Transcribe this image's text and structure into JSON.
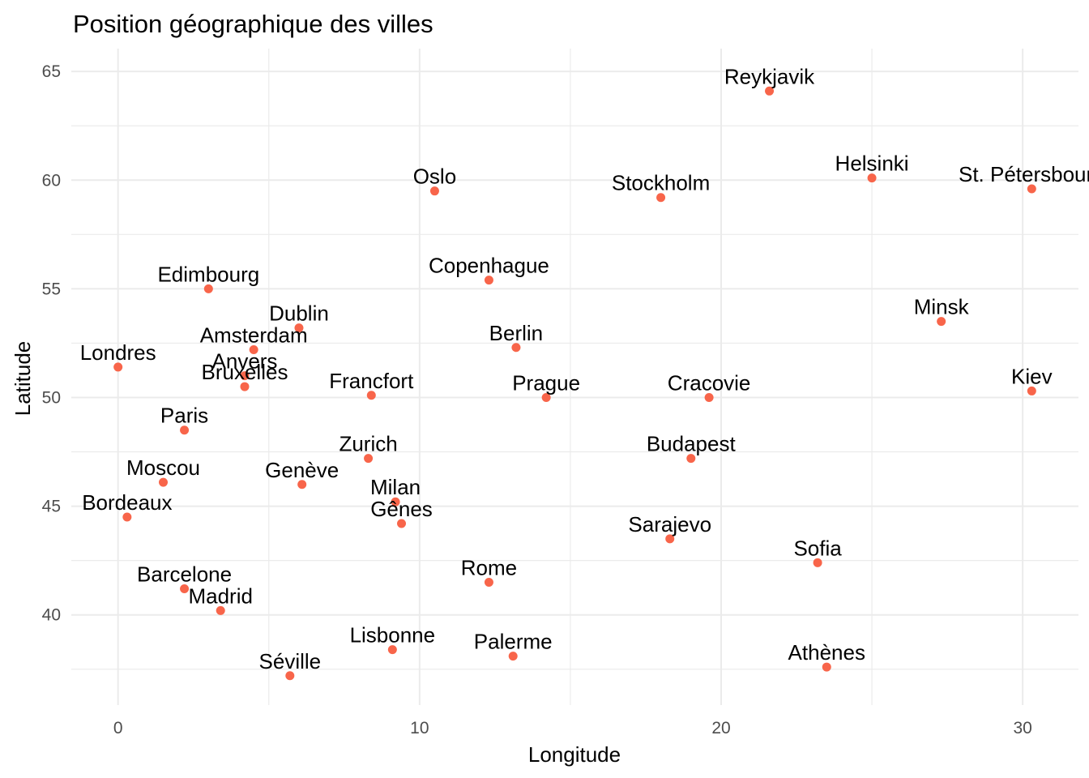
{
  "chart_data": {
    "type": "scatter",
    "title": "Position géographique des villes",
    "xlabel": "Longitude",
    "ylabel": "Latitude",
    "xlim": [
      -1.55,
      31.85
    ],
    "ylim": [
      35.85,
      66.05
    ],
    "x_ticks": [
      0,
      10,
      20,
      30
    ],
    "y_ticks": [
      40,
      45,
      50,
      55,
      60,
      65
    ],
    "grid": true,
    "point_color": "#f8654a",
    "points": [
      {
        "name": "Reykjavik",
        "x": 21.6,
        "y": 64.1
      },
      {
        "name": "Helsinki",
        "x": 25.0,
        "y": 60.1
      },
      {
        "name": "St. Pétersbourg",
        "x": 30.3,
        "y": 59.6
      },
      {
        "name": "Oslo",
        "x": 10.5,
        "y": 59.5
      },
      {
        "name": "Stockholm",
        "x": 18.0,
        "y": 59.2
      },
      {
        "name": "Copenhague",
        "x": 12.3,
        "y": 55.4
      },
      {
        "name": "Edimbourg",
        "x": 3.0,
        "y": 55.0
      },
      {
        "name": "Minsk",
        "x": 27.3,
        "y": 53.5
      },
      {
        "name": "Dublin",
        "x": 6.0,
        "y": 53.2
      },
      {
        "name": "Berlin",
        "x": 13.2,
        "y": 52.3
      },
      {
        "name": "Amsterdam",
        "x": 4.5,
        "y": 52.2
      },
      {
        "name": "Londres",
        "x": 0.0,
        "y": 51.4
      },
      {
        "name": "Anvers",
        "x": 4.2,
        "y": 51.0
      },
      {
        "name": "Bruxelles",
        "x": 4.2,
        "y": 50.5
      },
      {
        "name": "Kiev",
        "x": 30.3,
        "y": 50.3
      },
      {
        "name": "Francfort",
        "x": 8.4,
        "y": 50.1
      },
      {
        "name": "Prague",
        "x": 14.2,
        "y": 50.0
      },
      {
        "name": "Cracovie",
        "x": 19.6,
        "y": 50.0
      },
      {
        "name": "Paris",
        "x": 2.2,
        "y": 48.5
      },
      {
        "name": "Budapest",
        "x": 19.0,
        "y": 47.2
      },
      {
        "name": "Zurich",
        "x": 8.3,
        "y": 47.2
      },
      {
        "name": "Moscou",
        "x": 1.5,
        "y": 46.1
      },
      {
        "name": "Genève",
        "x": 6.1,
        "y": 46.0
      },
      {
        "name": "Milan",
        "x": 9.2,
        "y": 45.2
      },
      {
        "name": "Bordeaux",
        "x": 0.3,
        "y": 44.5
      },
      {
        "name": "Gênes",
        "x": 9.4,
        "y": 44.2
      },
      {
        "name": "Sarajevo",
        "x": 18.3,
        "y": 43.5
      },
      {
        "name": "Sofia",
        "x": 23.2,
        "y": 42.4
      },
      {
        "name": "Rome",
        "x": 12.3,
        "y": 41.5
      },
      {
        "name": "Barcelone",
        "x": 2.2,
        "y": 41.2
      },
      {
        "name": "Madrid",
        "x": 3.4,
        "y": 40.2
      },
      {
        "name": "Lisbonne",
        "x": 9.1,
        "y": 38.4
      },
      {
        "name": "Palerme",
        "x": 13.1,
        "y": 38.1
      },
      {
        "name": "Athènes",
        "x": 23.5,
        "y": 37.6
      },
      {
        "name": "Séville",
        "x": 5.7,
        "y": 37.2
      }
    ]
  }
}
